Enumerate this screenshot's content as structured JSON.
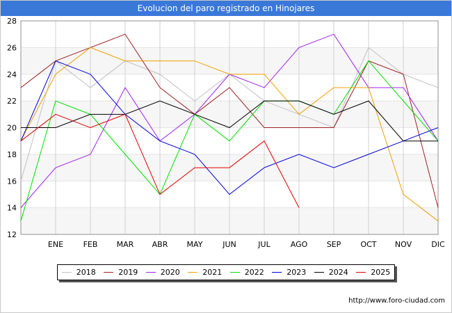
{
  "chart_data": {
    "type": "line",
    "title": "Evolucion del paro registrado en Hinojares",
    "xlabel": "",
    "ylabel": "",
    "categories": [
      "",
      "ENE",
      "FEB",
      "MAR",
      "ABR",
      "MAY",
      "JUN",
      "JUL",
      "AGO",
      "SEP",
      "OCT",
      "NOV",
      "DIC"
    ],
    "ylim": [
      12,
      28
    ],
    "yticks": [
      12,
      14,
      16,
      18,
      20,
      22,
      24,
      26,
      28
    ],
    "grid": true,
    "legend_position": "bottom",
    "series": [
      {
        "name": "2018",
        "color": "#c0c0c0",
        "values": [
          16,
          25,
          23,
          25,
          24,
          22,
          24,
          22,
          21,
          20,
          26,
          24,
          23
        ]
      },
      {
        "name": "2019",
        "color": "#a02020",
        "values": [
          23,
          25,
          26,
          27,
          23,
          21,
          23,
          20,
          20,
          20,
          25,
          24,
          14
        ]
      },
      {
        "name": "2020",
        "color": "#a020f0",
        "values": [
          14,
          17,
          18,
          23,
          19,
          21,
          24,
          23,
          26,
          27,
          23,
          23,
          19
        ]
      },
      {
        "name": "2021",
        "color": "#f0a000",
        "values": [
          19,
          24,
          26,
          25,
          25,
          25,
          24,
          24,
          21,
          23,
          23,
          15,
          13
        ]
      },
      {
        "name": "2022",
        "color": "#00e000",
        "values": [
          13,
          22,
          21,
          18,
          15,
          21,
          19,
          22,
          22,
          21,
          25,
          22,
          19
        ]
      },
      {
        "name": "2023",
        "color": "#0000e0",
        "values": [
          19,
          25,
          24,
          21,
          19,
          18,
          15,
          17,
          18,
          17,
          18,
          19,
          20
        ]
      },
      {
        "name": "2024",
        "color": "#000000",
        "values": [
          20,
          20,
          21,
          21,
          22,
          21,
          20,
          22,
          22,
          21,
          22,
          19,
          19
        ]
      },
      {
        "name": "2025",
        "color": "#e00000",
        "values": [
          19,
          21,
          20,
          21,
          15,
          17,
          17,
          19,
          14,
          null,
          null,
          null,
          null
        ]
      }
    ]
  },
  "source": "http://www.foro-ciudad.com"
}
